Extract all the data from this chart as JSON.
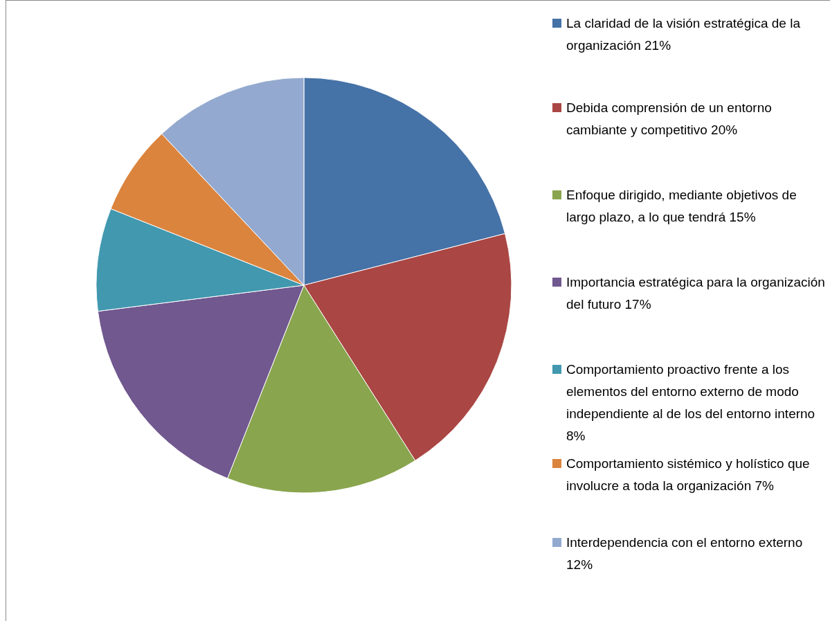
{
  "chart_data": {
    "type": "pie",
    "categories": [
      "La claridad de la visión estratégica de la organización 21%",
      "Debida comprensión de un entorno cambiante y competitivo 20%",
      "Enfoque dirigido, mediante objetivos de largo plazo, a lo que tendrá 15%",
      "Importancia estratégica para la organización del futuro 17%",
      "Comportamiento proactivo frente a los elementos del entorno externo de modo independiente al de los del entorno interno 8%",
      "Comportamiento sistémico y holístico que involucre a toda la organización 7%",
      "Interdependencia con el entorno externo 12%"
    ],
    "values": [
      21,
      20,
      15,
      17,
      8,
      7,
      12
    ],
    "colors": [
      "#4572a7",
      "#aa4643",
      "#89a54e",
      "#71588f",
      "#4198af",
      "#db843d",
      "#93a9cf"
    ],
    "legend": "right"
  }
}
